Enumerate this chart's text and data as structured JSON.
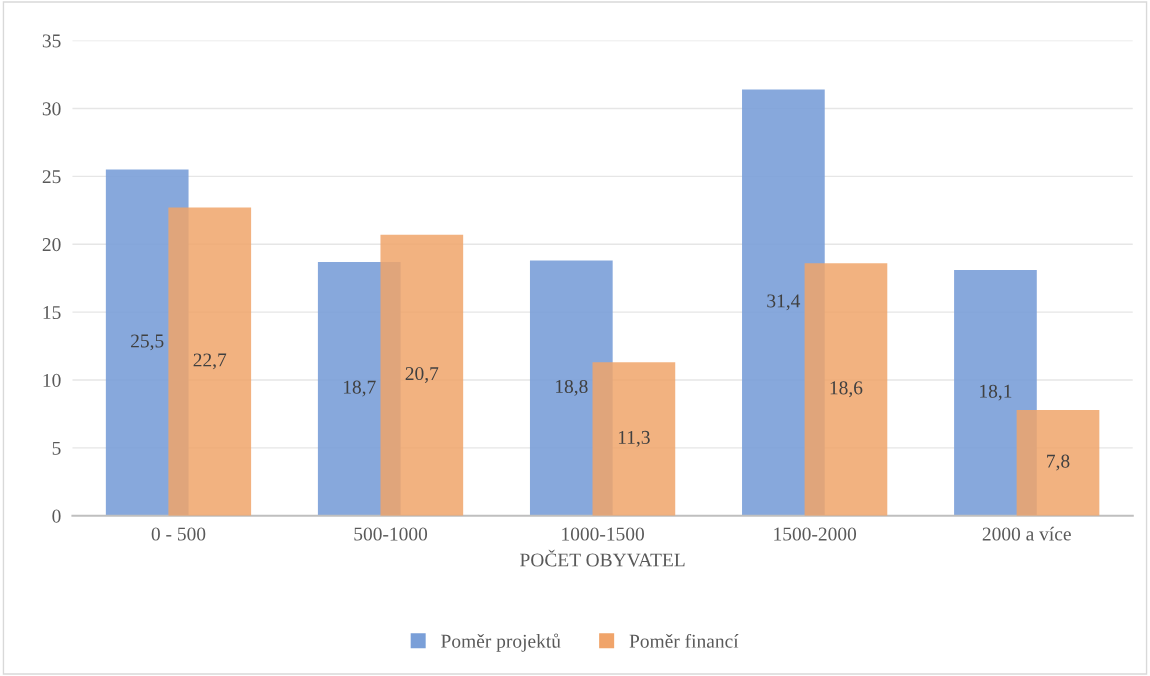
{
  "chart_data": {
    "type": "bar",
    "xlabel": "POČET OBYVATEL",
    "categories": [
      "0 - 500",
      "500-1000",
      "1000-1500",
      "1500-2000",
      "2000 a více"
    ],
    "series": [
      {
        "name": "Poměr projektů",
        "color": "#7a9fd8",
        "values": [
          25.5,
          18.7,
          18.8,
          31.4,
          18.1
        ],
        "value_labels": [
          "25,5",
          "18,7",
          "18,8",
          "31,4",
          "18,1"
        ]
      },
      {
        "name": "Poměr financí",
        "color": "#f0a46a",
        "values": [
          22.7,
          20.7,
          11.3,
          18.6,
          7.8
        ],
        "value_labels": [
          "22,7",
          "20,7",
          "11,3",
          "18,6",
          "7,8"
        ]
      }
    ],
    "ylim": [
      0,
      35
    ],
    "yticks": [
      0,
      5,
      10,
      15,
      20,
      25,
      30,
      35
    ],
    "grid": "y",
    "legend": "bottom"
  }
}
